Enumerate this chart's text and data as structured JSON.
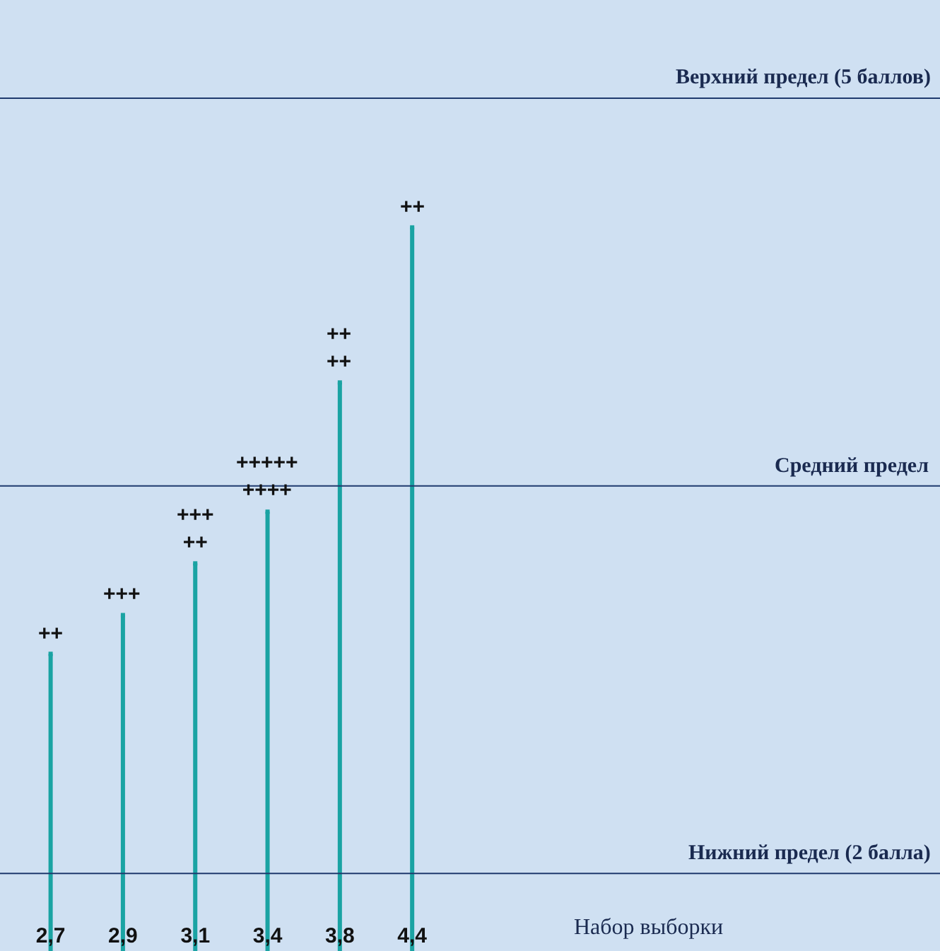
{
  "chart_data": {
    "type": "lollipop",
    "grid": false,
    "categories": [
      "2,7",
      "2,9",
      "3,1",
      "3,4",
      "3,8",
      "4,4"
    ],
    "values": [
      2.85,
      3.0,
      3.2,
      3.4,
      3.9,
      4.5
    ],
    "color": "#1aa3a3",
    "ylim": [
      1.7,
      5.38
    ],
    "ref_lines": [
      {
        "axis": "y",
        "value": 5,
        "label": "Верхний предел (5 баллов)",
        "color": "#1f3a6e"
      },
      {
        "axis": "y",
        "value": 3.5,
        "label": "Средний предел",
        "color": "#1f3a6e"
      },
      {
        "axis": "y",
        "value": 2,
        "label": "Нижний предел (2 балла)",
        "color": "#1f3a6e"
      }
    ],
    "annotations": [
      {
        "text": "++",
        "x": "2,7",
        "y": 2.85
      },
      {
        "text": "+++",
        "x": "2,9",
        "y": 3.0
      },
      {
        "text": "+++\n++",
        "x": "3,1",
        "y": 3.2
      },
      {
        "text": "+++++\n++++",
        "x": "3,4",
        "y": 3.4
      },
      {
        "text": "++\n++",
        "x": "3,8",
        "y": 3.9
      },
      {
        "text": "++",
        "x": "4,4",
        "y": 4.5
      },
      "Набор выборки"
    ]
  }
}
